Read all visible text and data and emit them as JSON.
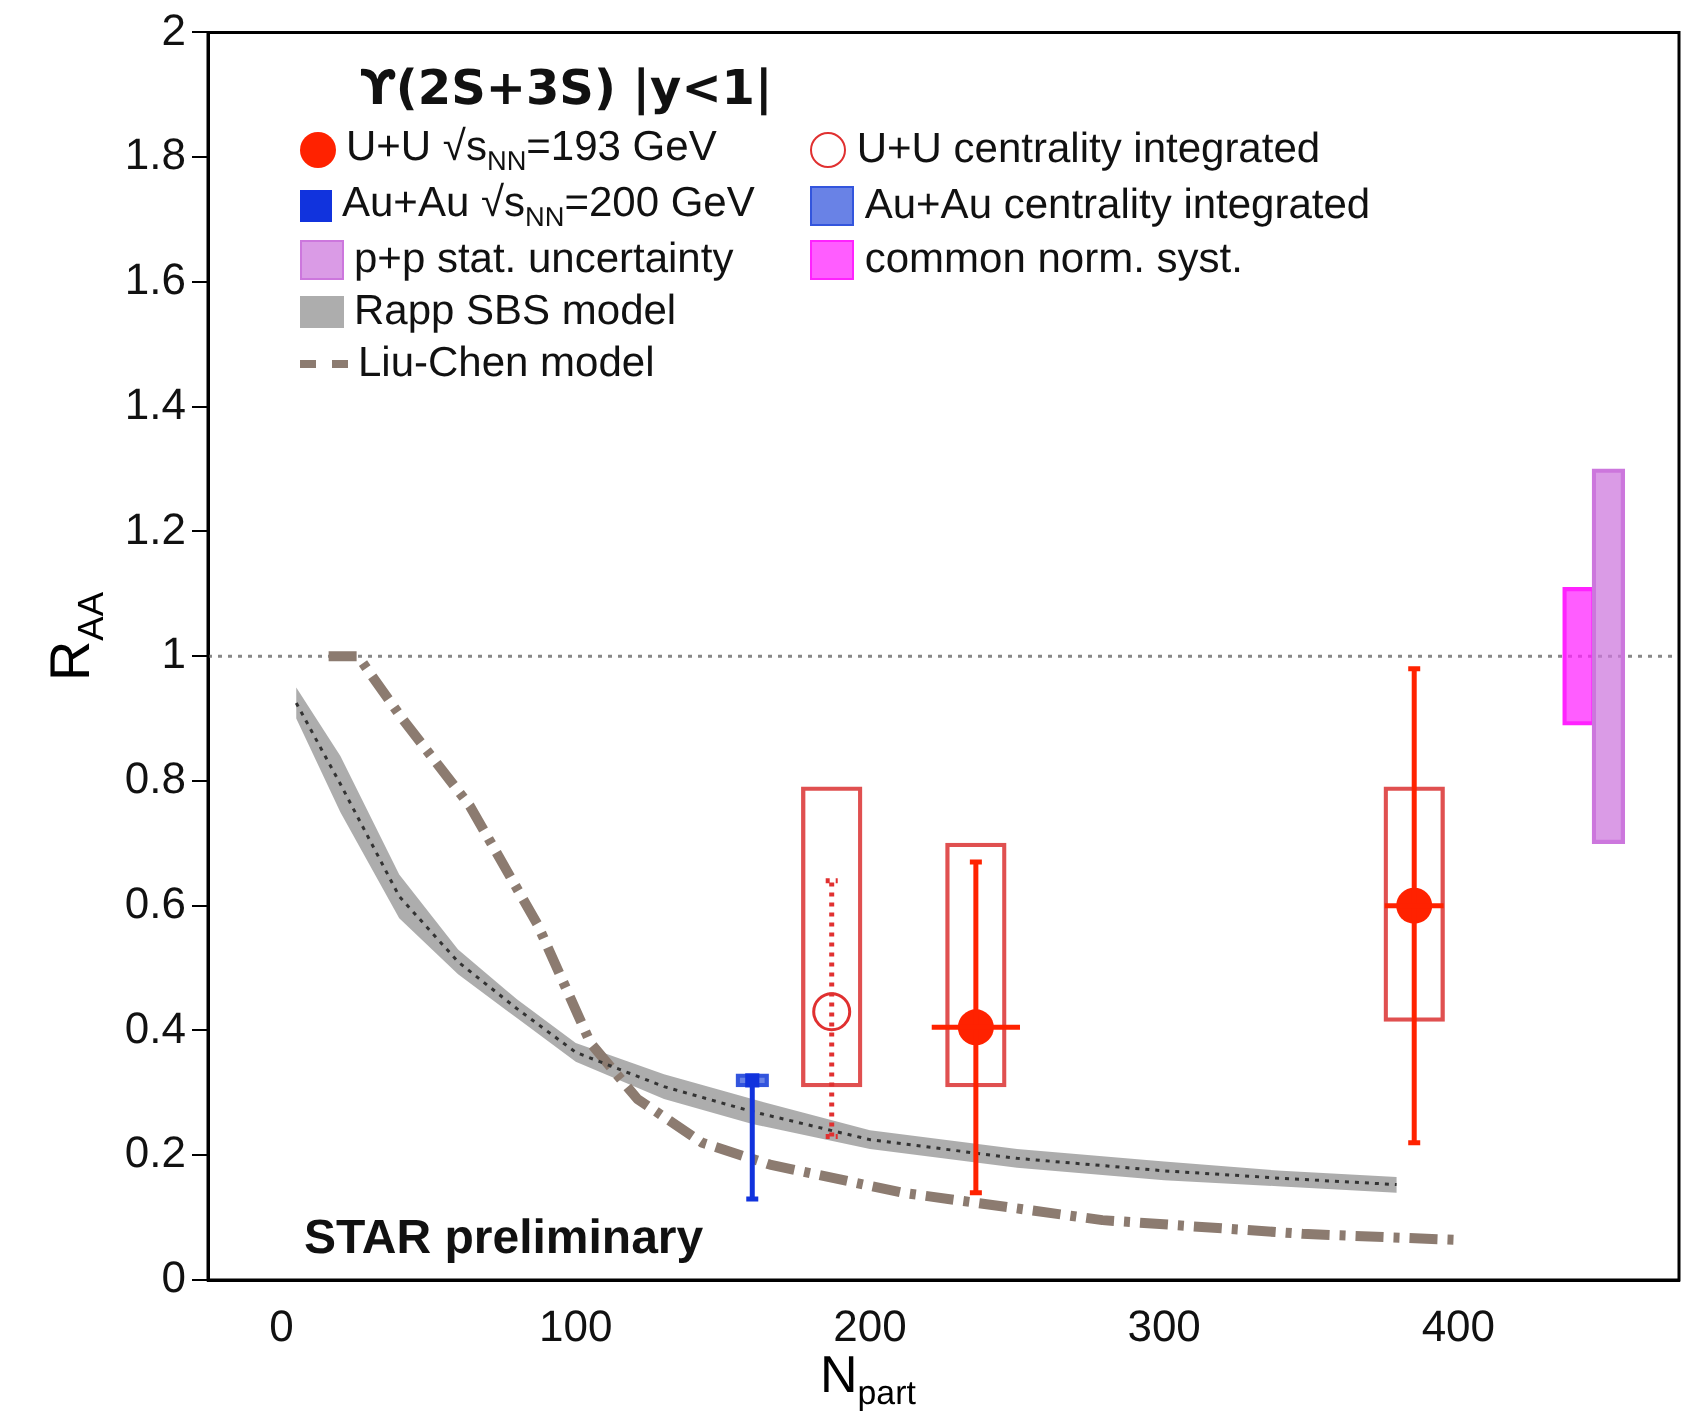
{
  "chart_data": {
    "type": "scatter",
    "xlabel": "N$_{part}$",
    "ylabel": "R$_{AA}$",
    "legend_title": "ϒ(2S+3S)  |y<1|",
    "annotations": [
      "STAR preliminary"
    ],
    "xlim": [
      -25,
      475
    ],
    "xticks": [
      0,
      100,
      200,
      300,
      400
    ],
    "ylim": [
      0,
      2
    ],
    "yticks": [
      0,
      0.2,
      0.4,
      0.6,
      0.8,
      1,
      1.2,
      1.4,
      1.6,
      1.8,
      2
    ],
    "ref_lines": [
      {
        "axis": "y",
        "value": 1,
        "color": "#888888",
        "line_style": "dotted"
      }
    ],
    "legend": "top",
    "series": [
      {
        "name": "U+U √s$_{NN}$=193 GeV",
        "color": "#ff2200",
        "marker": "circle",
        "x": [
          236,
          385
        ],
        "values": [
          0.405,
          0.6
        ],
        "errors": [
          [
            0.14,
            0.67
          ],
          [
            0.22,
            0.98
          ]
        ],
        "xerrors": [
          15,
          10
        ]
      },
      {
        "name": "U+U centrality integrated",
        "color": "#e03030",
        "marker": "circle",
        "line_style": "dotted",
        "x": [
          187
        ],
        "values": [
          0.43
        ],
        "errors": [
          [
            0.23,
            0.64
          ]
        ]
      },
      {
        "name": "Au+Au √s$_{NN}$=200 GeV",
        "color": "#1133dd",
        "marker": "square",
        "x": [
          160
        ],
        "values": [
          0.32
        ],
        "errors": [
          [
            0.13,
            0.32
          ]
        ]
      },
      {
        "name": "Au+Au centrality integrated",
        "type": "bar",
        "color": "#3355dd",
        "x": [
          160
        ],
        "base": [
          0.31
        ],
        "values": [
          0.02
        ]
      },
      {
        "name": "p+p stat. uncertainty",
        "type": "bar",
        "color": "#cc77dd",
        "x": [
          451
        ],
        "base": [
          0.7
        ],
        "values": [
          0.6
        ]
      },
      {
        "name": "common norm. syst.",
        "type": "bar",
        "color": "#ff22ff",
        "x": [
          441
        ],
        "base": [
          0.89
        ],
        "values": [
          0.22
        ]
      },
      {
        "name": "Rapp SBS model",
        "type": "line",
        "color": "#333333",
        "line_style": "dotted",
        "x": [
          5,
          20,
          40,
          60,
          80,
          100,
          130,
          160,
          200,
          250,
          300,
          340,
          379
        ],
        "values": [
          0.925,
          0.795,
          0.615,
          0.51,
          0.435,
          0.365,
          0.31,
          0.27,
          0.225,
          0.195,
          0.175,
          0.163,
          0.153
        ],
        "lower": [
          0.9,
          0.75,
          0.58,
          0.49,
          0.42,
          0.35,
          0.29,
          0.25,
          0.21,
          0.18,
          0.16,
          0.15,
          0.14
        ],
        "upper": [
          0.95,
          0.84,
          0.65,
          0.53,
          0.45,
          0.38,
          0.33,
          0.29,
          0.24,
          0.21,
          0.19,
          0.175,
          0.165
        ]
      },
      {
        "name": "Liu-Chen model",
        "type": "line",
        "color": "#8c7b70",
        "line_style": "dashed",
        "x": [
          16,
          26,
          41,
          64,
          87,
          105,
          121,
          143,
          166,
          211,
          279,
          347,
          401
        ],
        "values": [
          1,
          1,
          0.9,
          0.76,
          0.57,
          0.38,
          0.29,
          0.22,
          0.185,
          0.14,
          0.096,
          0.074,
          0.064
        ]
      },
      {
        "type": "bar",
        "color": "#e05050",
        "x": [
          187,
          236,
          385
        ],
        "base": [
          0.31,
          0.31,
          0.415
        ],
        "values": [
          0.48,
          0.39,
          0.375
        ]
      }
    ]
  }
}
